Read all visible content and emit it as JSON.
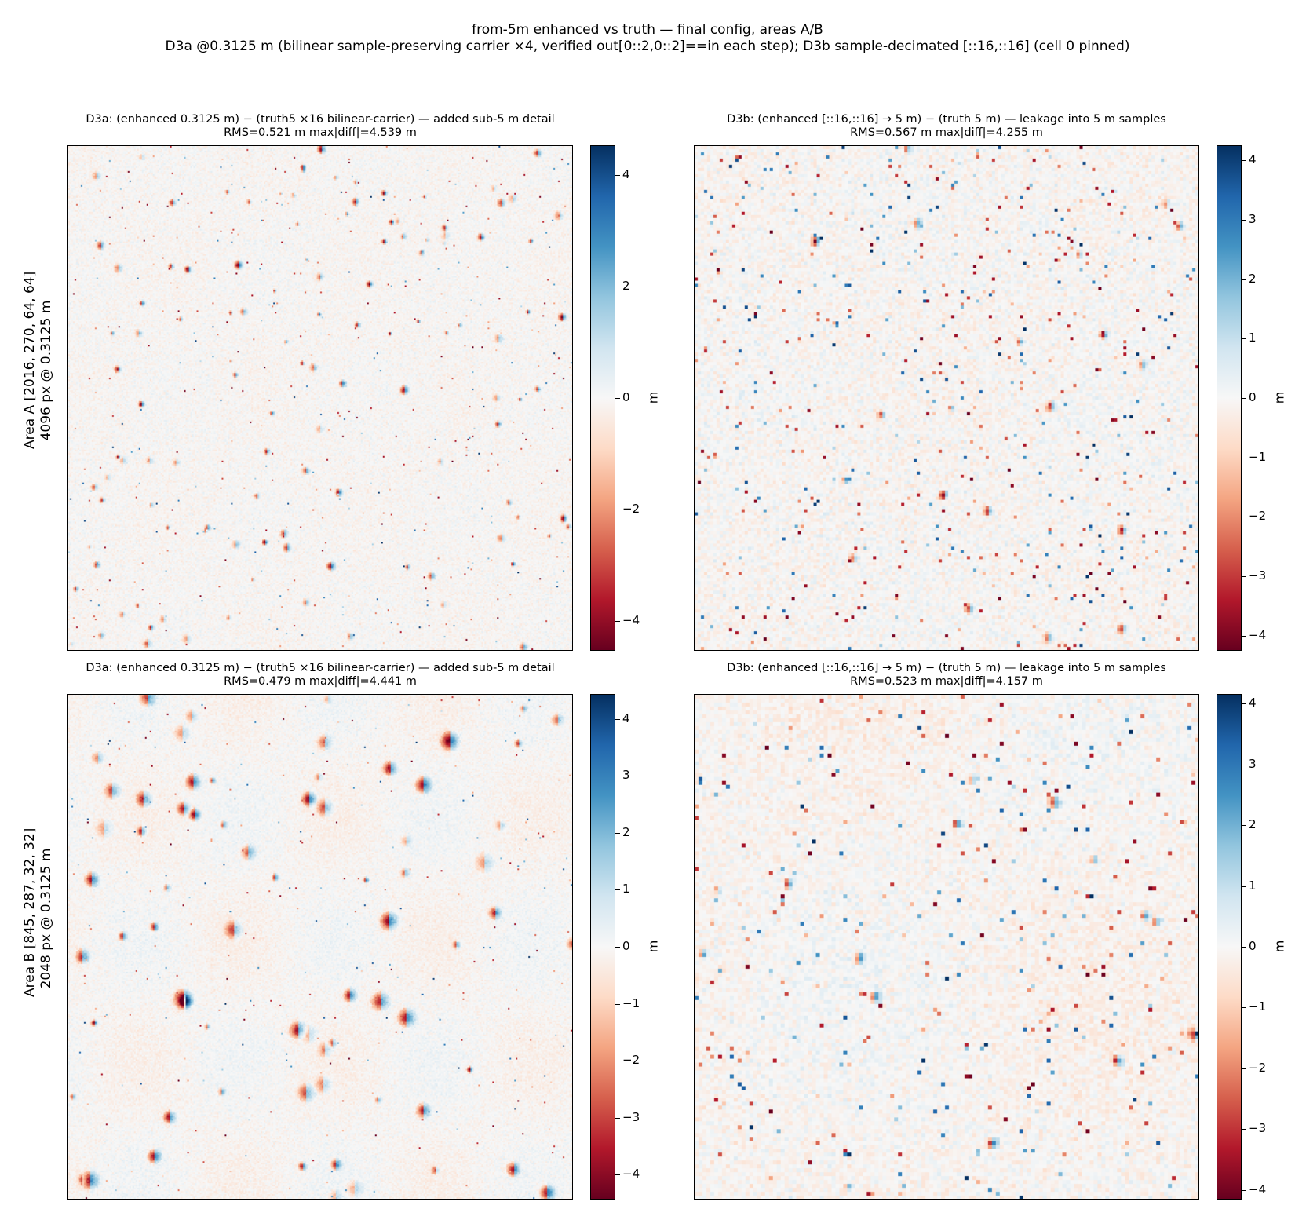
{
  "suptitle": {
    "line1": "from-5m enhanced vs truth — final config, areas A/B",
    "line2": "D3a @0.3125 m (bilinear sample-preserving carrier ×4, verified out[0::2,0::2]==in each step); D3b sample-decimated [::16,::16] (cell 0 pinned)"
  },
  "rows": [
    {
      "label1": "Area A  [2016, 270, 64, 64]",
      "label2": "4096 px @ 0.3125 m"
    },
    {
      "label1": "Area B  [845, 287, 32, 32]",
      "label2": "2048 px @ 0.3125 m"
    }
  ],
  "chart_data": [
    {
      "type": "heatmap",
      "panel": "A-D3a",
      "title": "D3a: (enhanced 0.3125 m) − (truth5 ×16 bilinear-carrier)  — added sub-5 m detail",
      "stats": "RMS=0.521 m   max|diff|=4.539 m",
      "rms": 0.521,
      "max_abs_diff": 4.539,
      "colormap": "RdBu",
      "clim": [
        -4.539,
        4.539
      ],
      "colorbar_ticks": [
        -4,
        -2,
        0,
        2,
        4
      ],
      "colorbar_tick_labels": [
        "−4",
        "−2",
        "0",
        "2",
        "4"
      ],
      "colorbar_label": "m"
    },
    {
      "type": "heatmap",
      "panel": "A-D3b",
      "title": "D3b: (enhanced [::16,::16] → 5 m) − (truth 5 m)  — leakage into 5 m samples",
      "stats": "RMS=0.567 m   max|diff|=4.255 m",
      "rms": 0.567,
      "max_abs_diff": 4.255,
      "colormap": "RdBu",
      "clim": [
        -4.255,
        4.255
      ],
      "colorbar_ticks": [
        -4,
        -3,
        -2,
        -1,
        0,
        1,
        2,
        3,
        4
      ],
      "colorbar_tick_labels": [
        "−4",
        "−3",
        "−2",
        "−1",
        "0",
        "1",
        "2",
        "3",
        "4"
      ],
      "colorbar_label": "m"
    },
    {
      "type": "heatmap",
      "panel": "B-D3a",
      "title": "D3a: (enhanced 0.3125 m) − (truth5 ×16 bilinear-carrier)  — added sub-5 m detail",
      "stats": "RMS=0.479 m   max|diff|=4.441 m",
      "rms": 0.479,
      "max_abs_diff": 4.441,
      "colormap": "RdBu",
      "clim": [
        -4.441,
        4.441
      ],
      "colorbar_ticks": [
        -4,
        -3,
        -2,
        -1,
        0,
        1,
        2,
        3,
        4
      ],
      "colorbar_tick_labels": [
        "−4",
        "−3",
        "−2",
        "−1",
        "0",
        "1",
        "2",
        "3",
        "4"
      ],
      "colorbar_label": "m"
    },
    {
      "type": "heatmap",
      "panel": "B-D3b",
      "title": "D3b: (enhanced [::16,::16] → 5 m) − (truth 5 m)  — leakage into 5 m samples",
      "stats": "RMS=0.523 m   max|diff|=4.157 m",
      "rms": 0.523,
      "max_abs_diff": 4.157,
      "colormap": "RdBu",
      "clim": [
        -4.157,
        4.157
      ],
      "colorbar_ticks": [
        -4,
        -3,
        -2,
        -1,
        0,
        1,
        2,
        3,
        4
      ],
      "colorbar_tick_labels": [
        "−4",
        "−3",
        "−2",
        "−1",
        "0",
        "1",
        "2",
        "3",
        "4"
      ],
      "colorbar_label": "m"
    }
  ]
}
